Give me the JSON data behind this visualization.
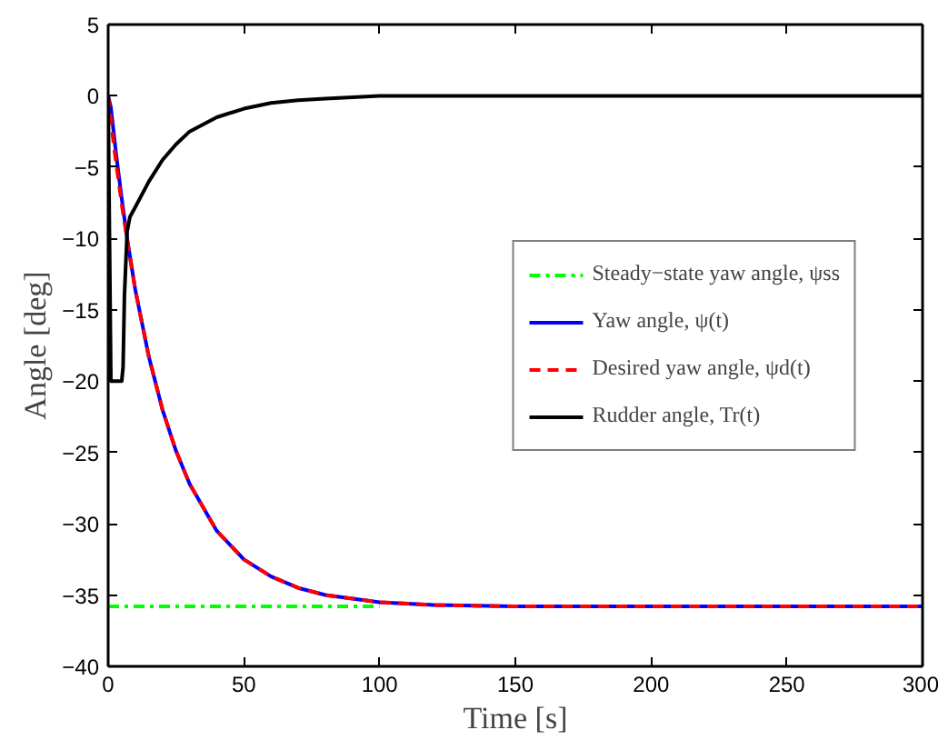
{
  "chart_data": {
    "type": "line",
    "xlabel": "Time [s]",
    "ylabel": "Angle [deg]",
    "xlim": [
      0,
      300
    ],
    "ylim": [
      -40,
      5
    ],
    "xticks": [
      0,
      50,
      100,
      150,
      200,
      250,
      300
    ],
    "yticks": [
      -40,
      -35,
      -30,
      -25,
      -20,
      -15,
      -10,
      -5,
      0,
      5
    ],
    "grid": false,
    "legend": "right",
    "marker": "none",
    "series": [
      {
        "name": "Steady−state yaw angle, ψss",
        "color": "#00ff00",
        "line_style": "dashdot",
        "x": [
          0,
          100
        ],
        "values": [
          -35.8,
          -35.8
        ]
      },
      {
        "name": "Yaw angle, ψ(t)",
        "color": "#0000ff",
        "line_style": "solid",
        "x": [
          0,
          1,
          2,
          3,
          4,
          5,
          7,
          10,
          15,
          20,
          25,
          30,
          40,
          50,
          60,
          70,
          80,
          100,
          120,
          150,
          200,
          250,
          300
        ],
        "values": [
          0,
          -0.8,
          -2.5,
          -4.2,
          -5.7,
          -7.2,
          -10.0,
          -13.6,
          -18.3,
          -22.0,
          -24.9,
          -27.2,
          -30.5,
          -32.5,
          -33.7,
          -34.5,
          -35.0,
          -35.5,
          -35.7,
          -35.8,
          -35.8,
          -35.8,
          -35.8
        ]
      },
      {
        "name": "Desired yaw angle, ψd(t)",
        "color": "#ff0000",
        "line_style": "dashed",
        "x": [
          0,
          1,
          2,
          3,
          4,
          5,
          7,
          10,
          15,
          20,
          25,
          30,
          40,
          50,
          60,
          70,
          80,
          100,
          120,
          150,
          200,
          250,
          300
        ],
        "values": [
          0,
          -1.7,
          -3.3,
          -4.8,
          -6.2,
          -7.6,
          -10.1,
          -13.6,
          -18.3,
          -22.0,
          -24.9,
          -27.2,
          -30.5,
          -32.5,
          -33.7,
          -34.5,
          -35.0,
          -35.5,
          -35.7,
          -35.8,
          -35.8,
          -35.8,
          -35.8
        ]
      },
      {
        "name": "Rudder angle, Tr(t)",
        "color": "#000000",
        "line_style": "solid",
        "x": [
          0,
          0.5,
          1,
          5,
          5.5,
          6,
          7,
          8,
          10,
          15,
          20,
          25,
          30,
          40,
          50,
          60,
          70,
          80,
          100,
          150,
          200,
          250,
          300
        ],
        "values": [
          0,
          -10,
          -20,
          -20,
          -19,
          -14,
          -9.5,
          -8.5,
          -7.8,
          -6,
          -4.5,
          -3.4,
          -2.5,
          -1.5,
          -0.9,
          -0.5,
          -0.3,
          -0.2,
          0,
          0,
          0,
          0,
          0
        ]
      }
    ]
  }
}
